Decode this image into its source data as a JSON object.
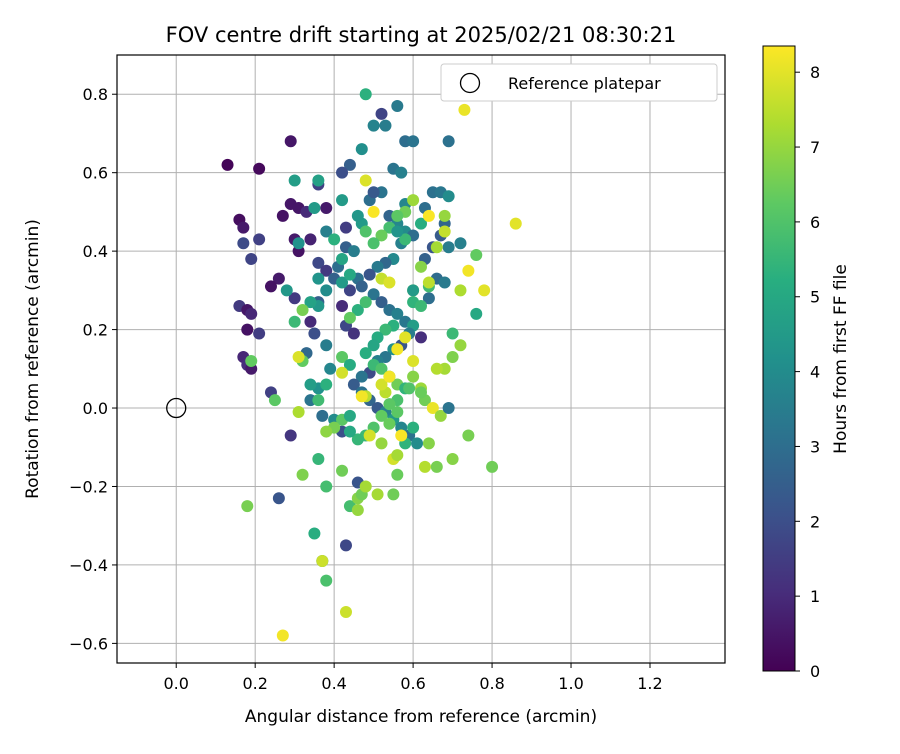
{
  "chart_data": {
    "type": "scatter",
    "title": "FOV centre drift starting at 2025/02/21 08:30:21",
    "xlabel": "Angular distance from reference (arcmin)",
    "ylabel": "Rotation from reference (arcmin)",
    "xlim": [
      -0.15,
      1.39
    ],
    "ylim": [
      -0.65,
      0.9
    ],
    "xticks": [
      "0.0",
      "0.2",
      "0.4",
      "0.6",
      "0.8",
      "1.0",
      "1.2"
    ],
    "xtick_values": [
      0.0,
      0.2,
      0.4,
      0.6,
      0.8,
      1.0,
      1.2
    ],
    "yticks": [
      "−0.6",
      "−0.4",
      "−0.2",
      "0.0",
      "0.2",
      "0.4",
      "0.6",
      "0.8"
    ],
    "ytick_values": [
      -0.6,
      -0.4,
      -0.2,
      0.0,
      0.2,
      0.4,
      0.6,
      0.8
    ],
    "grid": true,
    "legend": {
      "position": "top-right",
      "entries": [
        "Reference platepar"
      ]
    },
    "reference_point": {
      "x": 0.0,
      "y": 0.0
    },
    "colorbar": {
      "label": "Hours from first FF file",
      "colormap": "viridis",
      "range": [
        0,
        8.35
      ],
      "ticks": [
        "0",
        "1",
        "2",
        "3",
        "4",
        "5",
        "6",
        "7",
        "8"
      ],
      "tick_values": [
        0,
        1,
        2,
        3,
        4,
        5,
        6,
        7,
        8
      ]
    },
    "points": [
      [
        0.13,
        0.62,
        0.1
      ],
      [
        0.21,
        0.61,
        0.2
      ],
      [
        0.29,
        0.68,
        0.5
      ],
      [
        0.16,
        0.48,
        0.3
      ],
      [
        0.17,
        0.46,
        0.6
      ],
      [
        0.21,
        0.43,
        1.6
      ],
      [
        0.17,
        0.42,
        1.9
      ],
      [
        0.19,
        0.38,
        1.7
      ],
      [
        0.27,
        0.49,
        0.4
      ],
      [
        0.29,
        0.52,
        0.5
      ],
      [
        0.31,
        0.51,
        0.5
      ],
      [
        0.33,
        0.5,
        1.0
      ],
      [
        0.36,
        0.57,
        1.6
      ],
      [
        0.38,
        0.51,
        0.6
      ],
      [
        0.3,
        0.43,
        0.6
      ],
      [
        0.31,
        0.4,
        0.4
      ],
      [
        0.34,
        0.43,
        0.8
      ],
      [
        0.36,
        0.37,
        1.8
      ],
      [
        0.38,
        0.35,
        1.4
      ],
      [
        0.26,
        0.33,
        0.6
      ],
      [
        0.24,
        0.31,
        0.4
      ],
      [
        0.3,
        0.28,
        1.4
      ],
      [
        0.16,
        0.26,
        1.4
      ],
      [
        0.18,
        0.25,
        0.5
      ],
      [
        0.19,
        0.24,
        0.9
      ],
      [
        0.18,
        0.2,
        0.4
      ],
      [
        0.21,
        0.19,
        1.5
      ],
      [
        0.17,
        0.13,
        0.9
      ],
      [
        0.18,
        0.11,
        1.1
      ],
      [
        0.19,
        0.1,
        0.6
      ],
      [
        0.24,
        0.04,
        1.6
      ],
      [
        0.29,
        -0.07,
        1.3
      ],
      [
        0.26,
        -0.23,
        2.2
      ],
      [
        0.33,
        0.14,
        2.8
      ],
      [
        0.35,
        0.19,
        2.0
      ],
      [
        0.34,
        0.22,
        1.0
      ],
      [
        0.36,
        0.27,
        2.5
      ],
      [
        0.38,
        0.16,
        3.5
      ],
      [
        0.39,
        0.1,
        3.8
      ],
      [
        0.36,
        0.05,
        4.2
      ],
      [
        0.34,
        0.02,
        3.2
      ],
      [
        0.37,
        -0.02,
        3.0
      ],
      [
        0.4,
        -0.03,
        4.0
      ],
      [
        0.42,
        -0.06,
        2.0
      ],
      [
        0.43,
        0.21,
        1.8
      ],
      [
        0.45,
        0.19,
        1.2
      ],
      [
        0.42,
        0.26,
        1.0
      ],
      [
        0.44,
        0.3,
        1.7
      ],
      [
        0.46,
        0.33,
        3.1
      ],
      [
        0.41,
        0.36,
        3.0
      ],
      [
        0.43,
        0.41,
        2.5
      ],
      [
        0.45,
        0.4,
        3.5
      ],
      [
        0.43,
        0.46,
        1.5
      ],
      [
        0.47,
        0.47,
        4.5
      ],
      [
        0.49,
        0.53,
        3.0
      ],
      [
        0.42,
        0.53,
        4.5
      ],
      [
        0.44,
        0.62,
        2.5
      ],
      [
        0.47,
        0.66,
        4.1
      ],
      [
        0.48,
        0.8,
        5.3
      ],
      [
        0.5,
        0.72,
        3.7
      ],
      [
        0.52,
        0.75,
        1.7
      ],
      [
        0.53,
        0.72,
        3.5
      ],
      [
        0.56,
        0.77,
        3.4
      ],
      [
        0.58,
        0.68,
        3.0
      ],
      [
        0.55,
        0.61,
        3.2
      ],
      [
        0.57,
        0.6,
        3.6
      ],
      [
        0.52,
        0.55,
        3.2
      ],
      [
        0.5,
        0.55,
        2.3
      ],
      [
        0.54,
        0.49,
        2.7
      ],
      [
        0.56,
        0.47,
        3.8
      ],
      [
        0.58,
        0.45,
        4.0
      ],
      [
        0.6,
        0.44,
        3.0
      ],
      [
        0.57,
        0.42,
        3.6
      ],
      [
        0.55,
        0.38,
        3.9
      ],
      [
        0.53,
        0.37,
        2.8
      ],
      [
        0.51,
        0.36,
        3.4
      ],
      [
        0.49,
        0.34,
        2.2
      ],
      [
        0.47,
        0.31,
        2.6
      ],
      [
        0.5,
        0.29,
        3.2
      ],
      [
        0.52,
        0.27,
        2.5
      ],
      [
        0.54,
        0.25,
        3.1
      ],
      [
        0.56,
        0.24,
        3.6
      ],
      [
        0.58,
        0.22,
        3.3
      ],
      [
        0.6,
        0.21,
        4.6
      ],
      [
        0.62,
        0.18,
        1.1
      ],
      [
        0.59,
        0.19,
        3.5
      ],
      [
        0.57,
        0.16,
        2.2
      ],
      [
        0.55,
        0.15,
        4.1
      ],
      [
        0.53,
        0.13,
        3.3
      ],
      [
        0.51,
        0.12,
        3.6
      ],
      [
        0.49,
        0.09,
        1.9
      ],
      [
        0.47,
        0.08,
        3.2
      ],
      [
        0.45,
        0.06,
        2.4
      ],
      [
        0.47,
        0.04,
        3.1
      ],
      [
        0.49,
        0.02,
        2.7
      ],
      [
        0.51,
        0.0,
        2.3
      ],
      [
        0.53,
        -0.01,
        3.6
      ],
      [
        0.55,
        -0.03,
        4.5
      ],
      [
        0.57,
        -0.05,
        3.8
      ],
      [
        0.59,
        -0.07,
        3.1
      ],
      [
        0.61,
        -0.09,
        4.0
      ],
      [
        0.63,
        0.51,
        3.0
      ],
      [
        0.65,
        0.55,
        3.1
      ],
      [
        0.67,
        0.55,
        3.3
      ],
      [
        0.69,
        0.54,
        4.0
      ],
      [
        0.68,
        0.47,
        2.7
      ],
      [
        0.67,
        0.44,
        2.4
      ],
      [
        0.65,
        0.41,
        2.2
      ],
      [
        0.63,
        0.38,
        2.6
      ],
      [
        0.66,
        0.33,
        2.9
      ],
      [
        0.68,
        0.32,
        3.4
      ],
      [
        0.64,
        0.28,
        3.0
      ],
      [
        0.72,
        0.42,
        3.6
      ],
      [
        0.69,
        0.41,
        3.5
      ],
      [
        0.69,
        0.68,
        3.1
      ],
      [
        0.6,
        0.68,
        3.2
      ],
      [
        0.42,
        0.6,
        2.0
      ],
      [
        0.46,
        0.49,
        4.4
      ],
      [
        0.58,
        0.52,
        3.8
      ],
      [
        0.62,
        0.47,
        5.2
      ],
      [
        0.64,
        0.31,
        5.7
      ],
      [
        0.6,
        0.27,
        5.4
      ],
      [
        0.62,
        0.26,
        5.6
      ],
      [
        0.55,
        0.21,
        5.3
      ],
      [
        0.53,
        0.2,
        5.6
      ],
      [
        0.51,
        0.18,
        5.1
      ],
      [
        0.5,
        0.16,
        4.9
      ],
      [
        0.48,
        0.14,
        5.2
      ],
      [
        0.5,
        0.11,
        5.6
      ],
      [
        0.52,
        0.1,
        6.0
      ],
      [
        0.54,
        0.08,
        6.3
      ],
      [
        0.56,
        0.06,
        6.5
      ],
      [
        0.58,
        0.05,
        5.4
      ],
      [
        0.56,
        0.02,
        5.9
      ],
      [
        0.54,
        0.01,
        6.2
      ],
      [
        0.52,
        -0.02,
        6.3
      ],
      [
        0.5,
        -0.05,
        6.0
      ],
      [
        0.48,
        -0.07,
        5.6
      ],
      [
        0.46,
        -0.08,
        5.5
      ],
      [
        0.44,
        -0.06,
        5.0
      ],
      [
        0.42,
        -0.03,
        6.2
      ],
      [
        0.4,
        -0.05,
        6.6
      ],
      [
        0.38,
        -0.06,
        6.9
      ],
      [
        0.36,
        -0.13,
        5.5
      ],
      [
        0.32,
        -0.17,
        6.7
      ],
      [
        0.38,
        -0.2,
        5.8
      ],
      [
        0.42,
        -0.16,
        6.5
      ],
      [
        0.44,
        -0.25,
        5.8
      ],
      [
        0.46,
        -0.26,
        7.0
      ],
      [
        0.46,
        -0.23,
        6.8
      ],
      [
        0.47,
        -0.22,
        6.5
      ],
      [
        0.51,
        -0.22,
        7.2
      ],
      [
        0.55,
        -0.22,
        6.5
      ],
      [
        0.56,
        -0.17,
        6.4
      ],
      [
        0.55,
        -0.13,
        7.8
      ],
      [
        0.56,
        -0.12,
        7.2
      ],
      [
        0.52,
        -0.09,
        7.0
      ],
      [
        0.54,
        -0.04,
        6.4
      ],
      [
        0.56,
        -0.01,
        6.2
      ],
      [
        0.53,
        0.04,
        7.5
      ],
      [
        0.52,
        0.06,
        7.8
      ],
      [
        0.54,
        0.08,
        8.2
      ],
      [
        0.6,
        0.08,
        6.8
      ],
      [
        0.62,
        0.05,
        7.1
      ],
      [
        0.63,
        0.02,
        6.5
      ],
      [
        0.65,
        0.0,
        8.1
      ],
      [
        0.67,
        -0.02,
        7.0
      ],
      [
        0.69,
        0.0,
        3.2
      ],
      [
        0.64,
        -0.09,
        6.8
      ],
      [
        0.66,
        -0.15,
        6.6
      ],
      [
        0.63,
        -0.15,
        7.4
      ],
      [
        0.7,
        -0.13,
        6.8
      ],
      [
        0.74,
        -0.07,
        6.6
      ],
      [
        0.8,
        -0.15,
        6.5
      ],
      [
        0.7,
        0.13,
        6.7
      ],
      [
        0.72,
        0.16,
        7.0
      ],
      [
        0.7,
        0.19,
        5.6
      ],
      [
        0.68,
        0.1,
        7.2
      ],
      [
        0.66,
        0.1,
        7.4
      ],
      [
        0.6,
        0.12,
        7.9
      ],
      [
        0.58,
        0.18,
        8.0
      ],
      [
        0.56,
        0.15,
        8.2
      ],
      [
        0.6,
        0.3,
        7.0
      ],
      [
        0.62,
        0.36,
        6.8
      ],
      [
        0.64,
        0.32,
        7.5
      ],
      [
        0.72,
        0.3,
        7.3
      ],
      [
        0.74,
        0.35,
        8.2
      ],
      [
        0.78,
        0.3,
        8.0
      ],
      [
        0.76,
        0.39,
        6.3
      ],
      [
        0.76,
        0.24,
        5.0
      ],
      [
        0.68,
        0.45,
        7.6
      ],
      [
        0.68,
        0.49,
        7.0
      ],
      [
        0.66,
        0.41,
        7.2
      ],
      [
        0.64,
        0.49,
        8.3
      ],
      [
        0.6,
        0.53,
        7.1
      ],
      [
        0.58,
        0.5,
        6.5
      ],
      [
        0.56,
        0.49,
        6.2
      ],
      [
        0.54,
        0.46,
        5.8
      ],
      [
        0.52,
        0.44,
        6.4
      ],
      [
        0.5,
        0.42,
        5.9
      ],
      [
        0.5,
        0.5,
        8.3
      ],
      [
        0.48,
        0.58,
        7.9
      ],
      [
        0.48,
        0.45,
        6.0
      ],
      [
        0.52,
        0.33,
        7.6
      ],
      [
        0.54,
        0.32,
        7.9
      ],
      [
        0.36,
        0.58,
        4.7
      ],
      [
        0.35,
        0.51,
        4.5
      ],
      [
        0.38,
        0.45,
        3.6
      ],
      [
        0.4,
        0.43,
        5.3
      ],
      [
        0.42,
        0.38,
        4.9
      ],
      [
        0.36,
        0.33,
        4.3
      ],
      [
        0.38,
        0.3,
        4.0
      ],
      [
        0.4,
        0.33,
        2.6
      ],
      [
        0.42,
        0.32,
        4.5
      ],
      [
        0.44,
        0.34,
        5.0
      ],
      [
        0.46,
        0.25,
        5.3
      ],
      [
        0.48,
        0.27,
        5.8
      ],
      [
        0.44,
        0.23,
        6.3
      ],
      [
        0.36,
        0.26,
        4.4
      ],
      [
        0.34,
        0.27,
        4.8
      ],
      [
        0.3,
        0.22,
        5.6
      ],
      [
        0.32,
        0.25,
        6.6
      ],
      [
        0.32,
        0.12,
        6.3
      ],
      [
        0.31,
        0.13,
        7.9
      ],
      [
        0.31,
        -0.01,
        7.3
      ],
      [
        0.36,
        0.02,
        5.7
      ],
      [
        0.38,
        0.06,
        5.3
      ],
      [
        0.34,
        0.06,
        4.6
      ],
      [
        0.42,
        0.13,
        6.2
      ],
      [
        0.44,
        0.11,
        5.1
      ],
      [
        0.42,
        0.09,
        7.8
      ],
      [
        0.48,
        0.03,
        7.5
      ],
      [
        0.47,
        0.03,
        8.2
      ],
      [
        0.44,
        -0.02,
        5.0
      ],
      [
        0.49,
        -0.07,
        7.8
      ],
      [
        0.58,
        -0.09,
        5.4
      ],
      [
        0.6,
        -0.05,
        5.3
      ],
      [
        0.62,
        0.04,
        6.4
      ],
      [
        0.28,
        0.3,
        4.4
      ],
      [
        0.3,
        0.58,
        4.6
      ],
      [
        0.31,
        0.42,
        4.2
      ],
      [
        0.19,
        0.12,
        6.3
      ],
      [
        0.18,
        -0.25,
        6.6
      ],
      [
        0.25,
        0.02,
        6.2
      ],
      [
        0.35,
        -0.32,
        5.2
      ],
      [
        0.37,
        -0.39,
        4.3
      ],
      [
        0.37,
        -0.39,
        7.7
      ],
      [
        0.38,
        -0.44,
        5.9
      ],
      [
        0.43,
        -0.35,
        1.8
      ],
      [
        0.43,
        -0.52,
        7.7
      ],
      [
        0.27,
        -0.58,
        8.2
      ],
      [
        0.46,
        -0.19,
        2.2
      ],
      [
        0.48,
        -0.2,
        7.2
      ],
      [
        0.73,
        0.76,
        8.1
      ],
      [
        0.86,
        0.47,
        8.0
      ],
      [
        0.57,
        -0.07,
        8.3
      ],
      [
        0.59,
        0.05,
        6.0
      ],
      [
        0.6,
        0.3,
        4.5
      ],
      [
        0.58,
        0.43,
        5.6
      ],
      [
        0.56,
        0.45,
        4.3
      ]
    ]
  }
}
